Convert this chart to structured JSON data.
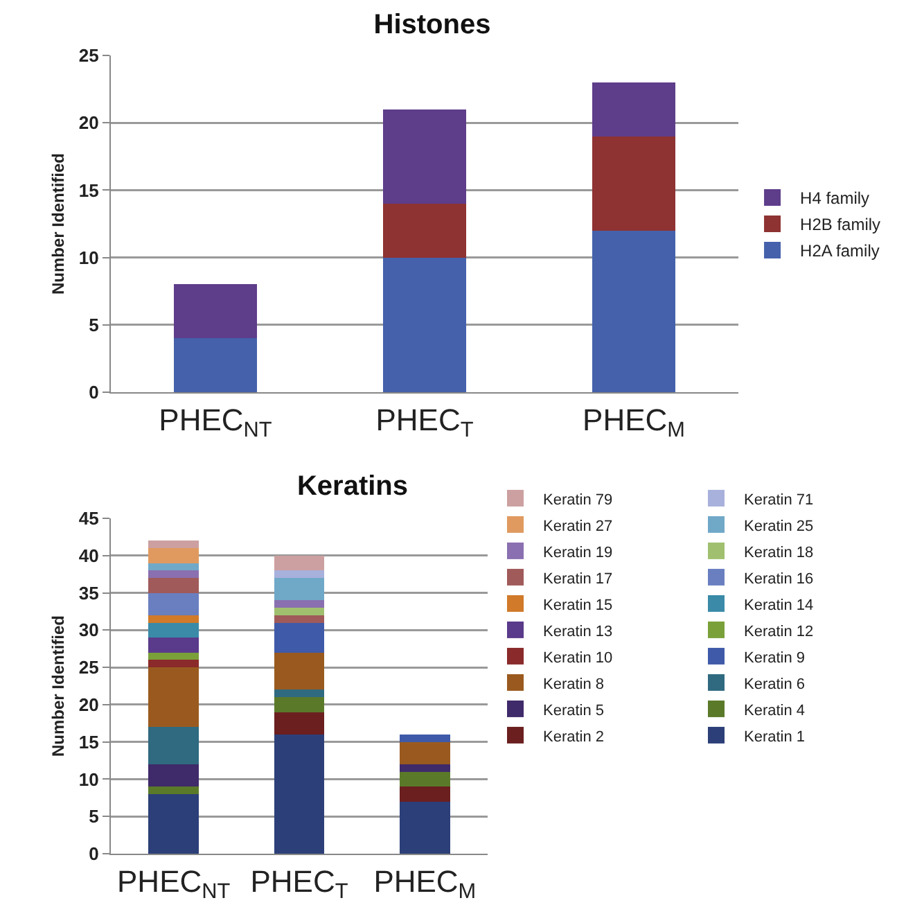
{
  "chart_data": [
    {
      "type": "bar",
      "title": "Histones",
      "ylabel": "Number Identified",
      "stacked": true,
      "grid": "y",
      "legend": "right",
      "categories": [
        "PHEC$_{NT}$",
        "PHEC$_{T}$",
        "PHEC$_{M}$"
      ],
      "ylim": [
        0,
        25
      ],
      "yticks": [
        0,
        5,
        10,
        15,
        20,
        25
      ],
      "series": [
        {
          "name": "H2A family",
          "color": "#4561ab",
          "values": [
            4,
            10,
            12
          ]
        },
        {
          "name": "H2B family",
          "color": "#8e3232",
          "values": [
            0,
            4,
            7
          ]
        },
        {
          "name": "H4 family",
          "color": "#5e3d8a",
          "values": [
            4,
            7,
            4
          ]
        }
      ]
    },
    {
      "type": "bar",
      "title": "Keratins",
      "ylabel": "Number Identified",
      "stacked": true,
      "grid": "y",
      "legend": "right",
      "categories": [
        "PHEC$_{NT}$",
        "PHEC$_{T}$",
        "PHEC$_{M}$"
      ],
      "ylim": [
        0,
        45
      ],
      "yticks": [
        0,
        5,
        10,
        15,
        20,
        25,
        30,
        35,
        40,
        45
      ],
      "series": [
        {
          "name": "Keratin 1",
          "color": "#2c3f78",
          "values": [
            8,
            16,
            7
          ]
        },
        {
          "name": "Keratin 2",
          "color": "#6b1f1f",
          "values": [
            0,
            3,
            2
          ]
        },
        {
          "name": "Keratin 4",
          "color": "#5a7a2a",
          "values": [
            1,
            2,
            2
          ]
        },
        {
          "name": "Keratin 5",
          "color": "#3f2a6a",
          "values": [
            3,
            0,
            1
          ]
        },
        {
          "name": "Keratin 6",
          "color": "#2f6a80",
          "values": [
            5,
            1,
            0
          ]
        },
        {
          "name": "Keratin 8",
          "color": "#9a5a1f",
          "values": [
            8,
            5,
            3
          ]
        },
        {
          "name": "Keratin 9",
          "color": "#3f5aa8",
          "values": [
            0,
            4,
            1
          ]
        },
        {
          "name": "Keratin 10",
          "color": "#8a2a2a",
          "values": [
            1,
            0,
            0
          ]
        },
        {
          "name": "Keratin 12",
          "color": "#7aa03a",
          "values": [
            1,
            0,
            0
          ]
        },
        {
          "name": "Keratin 13",
          "color": "#5a3a8a",
          "values": [
            2,
            0,
            0
          ]
        },
        {
          "name": "Keratin 14",
          "color": "#3a8aa8",
          "values": [
            2,
            0,
            0
          ]
        },
        {
          "name": "Keratin 15",
          "color": "#d07a2a",
          "values": [
            1,
            0,
            0
          ]
        },
        {
          "name": "Keratin 16",
          "color": "#6a7fc0",
          "values": [
            3,
            0,
            0
          ]
        },
        {
          "name": "Keratin 17",
          "color": "#a05a5a",
          "values": [
            2,
            1,
            0
          ]
        },
        {
          "name": "Keratin 18",
          "color": "#a0c070",
          "values": [
            0,
            1,
            0
          ]
        },
        {
          "name": "Keratin 19",
          "color": "#8a70b0",
          "values": [
            1,
            1,
            0
          ]
        },
        {
          "name": "Keratin 25",
          "color": "#70a8c8",
          "values": [
            1,
            3,
            0
          ]
        },
        {
          "name": "Keratin 27",
          "color": "#e09a60",
          "values": [
            2,
            0,
            0
          ]
        },
        {
          "name": "Keratin 71",
          "color": "#a8b0dc",
          "values": [
            0,
            1,
            0
          ]
        },
        {
          "name": "Keratin 79",
          "color": "#cca0a0",
          "values": [
            1,
            2,
            0
          ]
        }
      ]
    }
  ]
}
